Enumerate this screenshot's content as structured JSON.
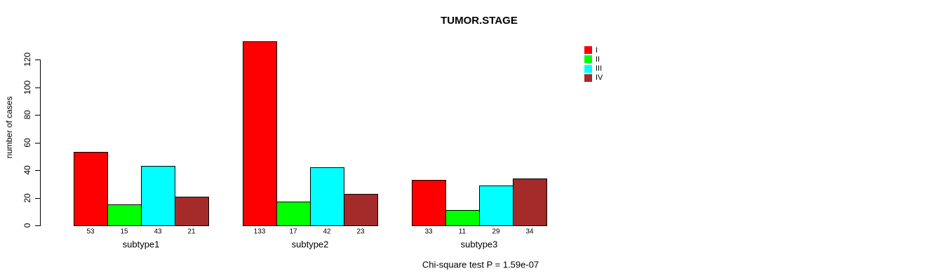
{
  "figure": {
    "title": "TUMOR.STAGE",
    "footer": "Chi-square test P = 1.59e-07"
  },
  "chart_data": {
    "type": "bar",
    "title": "TUMOR.STAGE",
    "xlabel": "",
    "ylabel": "number of cases",
    "ylim": [
      0,
      133
    ],
    "yticks": [
      0,
      20,
      40,
      60,
      80,
      100,
      120
    ],
    "categories": [
      "subtype1",
      "subtype2",
      "subtype3"
    ],
    "series": [
      {
        "name": "I",
        "color": "#ff0000",
        "values": [
          53,
          133,
          33
        ]
      },
      {
        "name": "II",
        "color": "#00ff00",
        "values": [
          15,
          17,
          11
        ]
      },
      {
        "name": "III",
        "color": "#00ffff",
        "values": [
          43,
          42,
          29
        ]
      },
      {
        "name": "IV",
        "color": "#a52a2a",
        "values": [
          21,
          23,
          34
        ]
      }
    ],
    "value_labels_shown": true,
    "grid": false,
    "legend_position": "top-right",
    "annotation": "Chi-square test P = 1.59e-07"
  }
}
